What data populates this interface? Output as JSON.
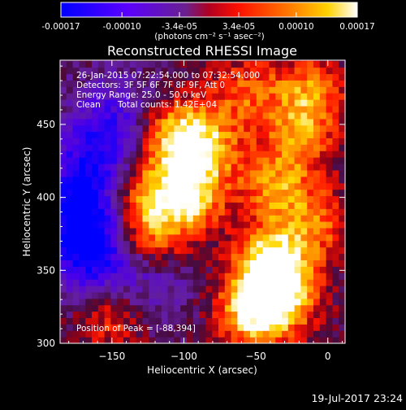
{
  "colorbar": {
    "tick_labels": [
      "-0.00017",
      "-0.00010",
      "-3.4e-05",
      "3.4e-05",
      "0.00010",
      "0.00017"
    ],
    "tick_values": [
      -0.00017,
      -0.0001,
      -3.4e-05,
      3.4e-05,
      0.0001,
      0.00017
    ],
    "range": [
      -0.00017,
      0.00017
    ],
    "unit_label": "(photons cm⁻² s⁻¹ asec⁻²)",
    "colors": [
      "#0000ff",
      "#6a00ff",
      "#7a1aa0",
      "#ff0000",
      "#ff7f00",
      "#ffd000",
      "#ffffff"
    ]
  },
  "chart_data": {
    "type": "heatmap",
    "title": "Reconstructed RHESSI Image",
    "xlabel": "Heliocentric X (arcsec)",
    "ylabel": "Heliocentric Y (arcsec)",
    "xlim": [
      -186,
      12
    ],
    "ylim": [
      300,
      494
    ],
    "x_ticks": [
      -150,
      -100,
      -50,
      0
    ],
    "y_ticks": [
      300,
      350,
      400,
      450
    ],
    "x_tick_labels": [
      "−150",
      "−100",
      "−50",
      "0"
    ],
    "y_tick_labels": [
      "300",
      "350",
      "400",
      "450"
    ],
    "peak_position": [
      -88,
      394
    ],
    "hotspots": [
      {
        "x": -102,
        "y": 398,
        "intensity": 1.0
      },
      {
        "x": -110,
        "y": 440,
        "intensity": 0.8
      },
      {
        "x": -88,
        "y": 432,
        "intensity": 0.7
      },
      {
        "x": -42,
        "y": 352,
        "intensity": 0.95
      },
      {
        "x": -35,
        "y": 330,
        "intensity": 0.85
      },
      {
        "x": -55,
        "y": 318,
        "intensity": 0.8
      },
      {
        "x": -130,
        "y": 372,
        "intensity": 0.7
      },
      {
        "x": -138,
        "y": 405,
        "intensity": 0.6
      },
      {
        "x": -15,
        "y": 470,
        "intensity": 0.65
      },
      {
        "x": -22,
        "y": 438,
        "intensity": 0.55
      },
      {
        "x": -40,
        "y": 405,
        "intensity": 0.6
      },
      {
        "x": -60,
        "y": 470,
        "intensity": 0.5
      },
      {
        "x": -12,
        "y": 380,
        "intensity": 0.55
      },
      {
        "x": -150,
        "y": 318,
        "intensity": 0.6
      }
    ],
    "coldspots": [
      {
        "x": -165,
        "y": 360,
        "intensity": -0.9
      },
      {
        "x": -175,
        "y": 392,
        "intensity": -0.7
      },
      {
        "x": -150,
        "y": 450,
        "intensity": -0.5
      },
      {
        "x": -160,
        "y": 420,
        "intensity": -0.6
      },
      {
        "x": -130,
        "y": 335,
        "intensity": -0.4
      }
    ]
  },
  "info": {
    "time_range": "26-Jan-2015 07:22:54.000 to 07:32:54.000",
    "detectors": "Detectors: 3F 5F 6F 7F 8F 9F, Att 0",
    "energy_range": "Energy Range: 25.0 - 50.0 keV",
    "method": "Clean",
    "total_counts": "Total counts: 1.42E+04",
    "peak_label": "Position of Peak = [-88,394]"
  },
  "footer": {
    "timestamp": "19-Jul-2017 23:24"
  }
}
